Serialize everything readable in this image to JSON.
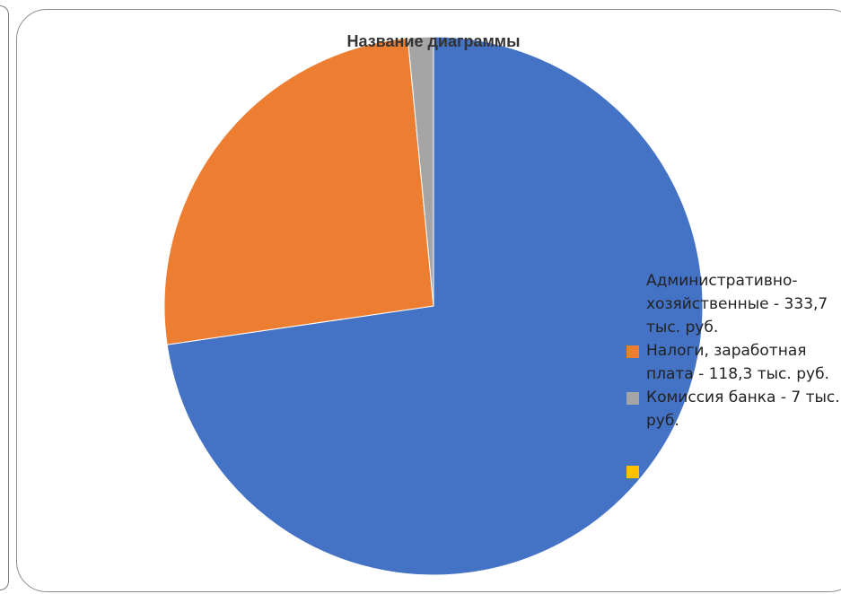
{
  "chart_data": {
    "type": "pie",
    "title": "Название диаграммы",
    "slices": [
      {
        "label": "Административно-хозяйственные - 333,7 тыс. руб.",
        "value": 333.7,
        "color": "#4472C4"
      },
      {
        "label": "Налоги, заработная плата - 118,3 тыс. руб.",
        "value": 118.3,
        "color": "#ED7D31"
      },
      {
        "label": "Комиссия банка - 7 тыс. руб.",
        "value": 7,
        "color": "#A5A5A5"
      },
      {
        "label": "",
        "value": 0,
        "color": "#FFC000"
      }
    ],
    "legend_position": "right"
  }
}
